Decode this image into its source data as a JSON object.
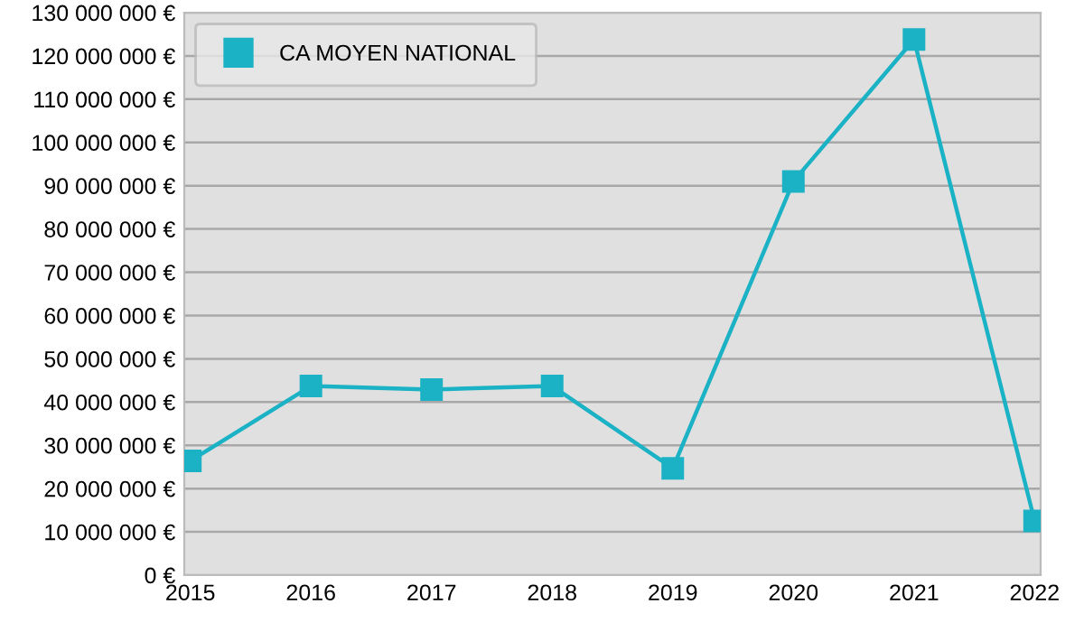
{
  "chart_data": {
    "type": "line",
    "categories": [
      "2015",
      "2016",
      "2017",
      "2018",
      "2019",
      "2020",
      "2021",
      "2022"
    ],
    "series": [
      {
        "name": "CA MOYEN NATIONAL",
        "color": "#1ab2c4",
        "values": [
          26400000,
          43700000,
          42900000,
          43700000,
          24700000,
          91000000,
          123800000,
          12500000
        ]
      }
    ],
    "ylim": [
      0,
      130000000
    ],
    "yticks": [
      {
        "value": 0,
        "label": "0 €"
      },
      {
        "value": 10000000,
        "label": "10 000 000 €"
      },
      {
        "value": 20000000,
        "label": "20 000 000 €"
      },
      {
        "value": 30000000,
        "label": "30 000 000 €"
      },
      {
        "value": 40000000,
        "label": "40 000 000 €"
      },
      {
        "value": 50000000,
        "label": "50 000 000 €"
      },
      {
        "value": 60000000,
        "label": "60 000 000 €"
      },
      {
        "value": 70000000,
        "label": "70 000 000 €"
      },
      {
        "value": 80000000,
        "label": "80 000 000 €"
      },
      {
        "value": 90000000,
        "label": "90 000 000 €"
      },
      {
        "value": 100000000,
        "label": "100 000 000 €"
      },
      {
        "value": 110000000,
        "label": "110 000 000 €"
      },
      {
        "value": 120000000,
        "label": "120 000 000 €"
      },
      {
        "value": 130000000,
        "label": "130 000 000 €"
      }
    ],
    "grid": "y",
    "legend": "top left",
    "marker": "square",
    "line_style": "solid"
  }
}
